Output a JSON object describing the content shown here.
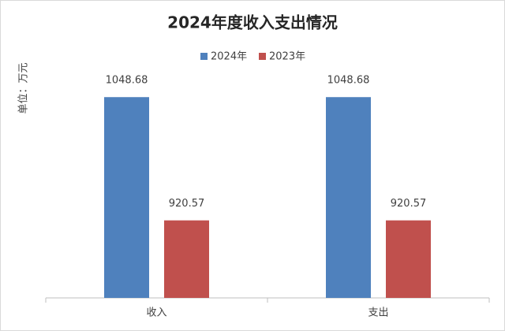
{
  "chart_data": {
    "type": "bar",
    "title": "2024年度收入支出情况",
    "y_label": "单位：万元",
    "categories": [
      "收入",
      "支出"
    ],
    "series": [
      {
        "name": "2024年",
        "color": "#4f81bd",
        "values": [
          1048.68,
          1048.68
        ]
      },
      {
        "name": "2023年",
        "color": "#c0504d",
        "values": [
          920.57,
          920.57
        ]
      }
    ],
    "ylim": [
      840,
      1080
    ],
    "legend": "top",
    "grid": false
  }
}
